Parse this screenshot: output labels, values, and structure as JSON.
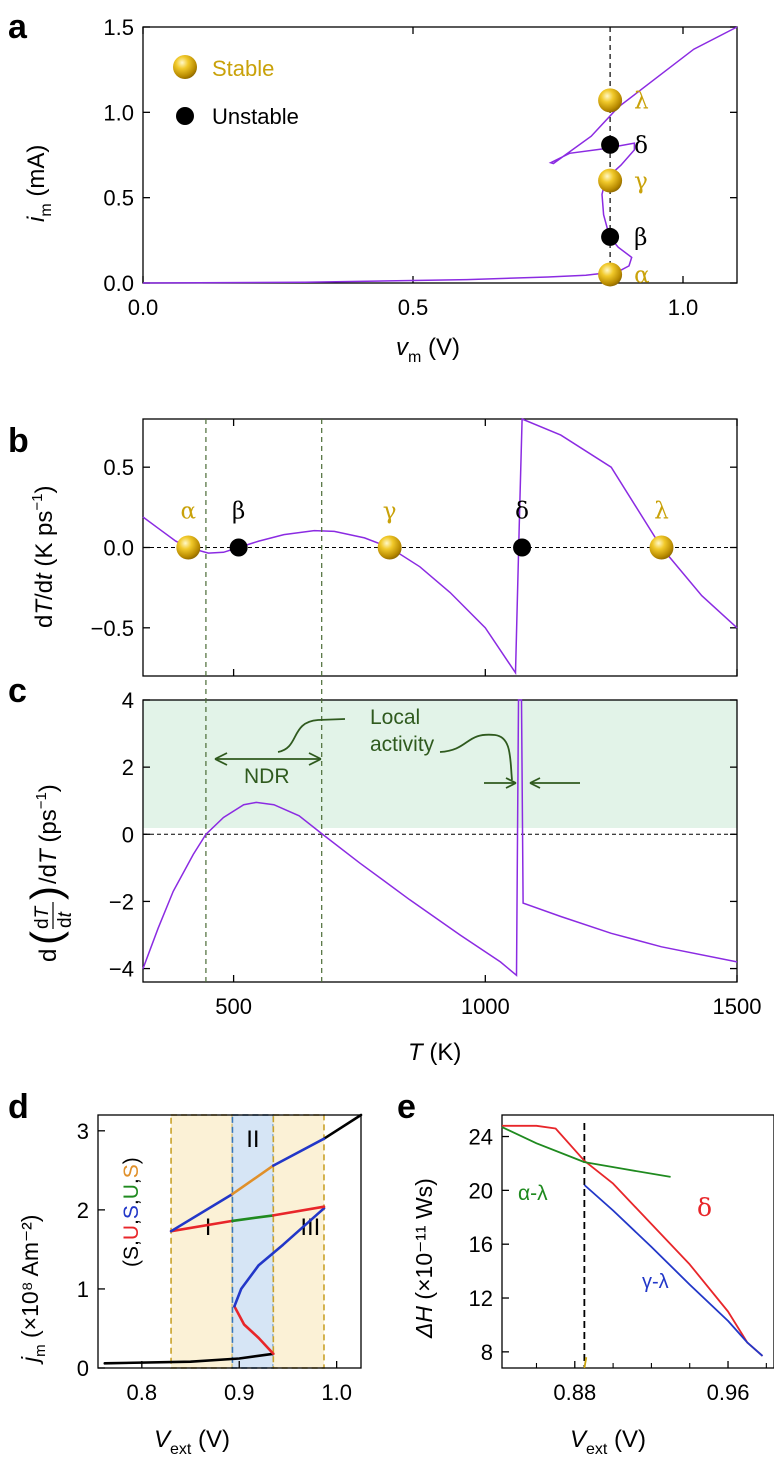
{
  "colors": {
    "purple": "#8b2be2",
    "gold": "#c9a20a",
    "axis": "#000000",
    "green_text": "#2f5a1e",
    "shade_green": "#e2f3e8",
    "shade_yellow": "#fbf1d6",
    "shade_blue": "#d6e5f5",
    "red": "#e8262a",
    "blue": "#2237c8",
    "green": "#1f8a1f",
    "orange": "#e0902a",
    "black": "#000000"
  },
  "chart_data": [
    {
      "panel": "a",
      "type": "line",
      "xlabel_var": "v",
      "xlabel_sub": "m",
      "xlabel_unit": " (V)",
      "ylabel_var": "i",
      "ylabel_sub": "m",
      "ylabel_unit": " (mA)",
      "xlim": [
        0,
        1.1
      ],
      "ylim": [
        0,
        1.5
      ],
      "xticks": [
        "0.0",
        "0.5",
        "1.0"
      ],
      "xtick_values": [
        0,
        0.5,
        1.0
      ],
      "yticks": [
        "0.0",
        "0.5",
        "1.0",
        "1.5"
      ],
      "ytick_values": [
        0,
        0.5,
        1.0,
        1.5
      ],
      "vline_x": 0.865,
      "curve": [
        [
          0,
          0
        ],
        [
          0.3,
          0.004
        ],
        [
          0.6,
          0.02
        ],
        [
          0.75,
          0.035
        ],
        [
          0.82,
          0.045
        ],
        [
          0.86,
          0.06
        ],
        [
          0.885,
          0.075
        ],
        [
          0.9,
          0.1
        ],
        [
          0.905,
          0.15
        ],
        [
          0.88,
          0.21
        ],
        [
          0.864,
          0.27
        ],
        [
          0.853,
          0.4
        ],
        [
          0.85,
          0.52
        ],
        [
          0.857,
          0.61
        ],
        [
          0.885,
          0.69
        ],
        [
          0.91,
          0.78
        ],
        [
          0.91,
          0.82
        ],
        [
          0.85,
          0.785
        ],
        [
          0.79,
          0.76
        ],
        [
          0.755,
          0.705
        ],
        [
          0.76,
          0.7
        ],
        [
          0.83,
          0.86
        ],
        [
          0.88,
          1.03
        ],
        [
          0.95,
          1.2
        ],
        [
          1.02,
          1.37
        ],
        [
          1.1,
          1.5
        ]
      ],
      "legend": [
        {
          "label": "Stable",
          "kind": "stable"
        },
        {
          "label": "Unstable",
          "kind": "unstable"
        }
      ],
      "points": [
        {
          "label": "λ",
          "x": 0.865,
          "y": 1.07,
          "kind": "stable"
        },
        {
          "label": "δ",
          "x": 0.865,
          "y": 0.81,
          "kind": "unstable"
        },
        {
          "label": "γ",
          "x": 0.865,
          "y": 0.6,
          "kind": "stable"
        },
        {
          "label": "β",
          "x": 0.865,
          "y": 0.27,
          "kind": "unstable"
        },
        {
          "label": "α",
          "x": 0.865,
          "y": 0.05,
          "kind": "stable"
        }
      ]
    },
    {
      "panel": "b",
      "type": "line",
      "ylabel": "dT/dt (K ps⁻¹)",
      "xlim": [
        320,
        1500
      ],
      "ylim": [
        -0.8,
        0.8
      ],
      "yticks": [
        "0.5",
        "0.0",
        "−0.5"
      ],
      "ytick_values": [
        0.5,
        0,
        -0.5
      ],
      "xtick_values": [
        500,
        1000,
        1500
      ],
      "curve": [
        [
          320,
          0.19
        ],
        [
          350,
          0.12
        ],
        [
          385,
          0.04
        ],
        [
          410,
          0.0
        ],
        [
          450,
          -0.035
        ],
        [
          480,
          -0.03
        ],
        [
          510,
          0.0
        ],
        [
          550,
          0.04
        ],
        [
          600,
          0.08
        ],
        [
          660,
          0.105
        ],
        [
          700,
          0.1
        ],
        [
          760,
          0.06
        ],
        [
          810,
          0.0
        ],
        [
          870,
          -0.12
        ],
        [
          930,
          -0.28
        ],
        [
          1000,
          -0.5
        ],
        [
          1060,
          -0.78
        ],
        [
          1068,
          0.2
        ],
        [
          1073,
          0.8
        ],
        [
          1150,
          0.7
        ],
        [
          1250,
          0.5
        ],
        [
          1350,
          0.0
        ],
        [
          1430,
          -0.3
        ],
        [
          1500,
          -0.5
        ]
      ],
      "points": [
        {
          "label": "α",
          "x": 410,
          "y": 0,
          "kind": "stable"
        },
        {
          "label": "β",
          "x": 510,
          "y": 0,
          "kind": "unstable"
        },
        {
          "label": "γ",
          "x": 810,
          "y": 0,
          "kind": "stable"
        },
        {
          "label": "δ",
          "x": 1073,
          "y": 0,
          "kind": "unstable"
        },
        {
          "label": "λ",
          "x": 1350,
          "y": 0,
          "kind": "stable"
        }
      ]
    },
    {
      "panel": "c",
      "type": "line",
      "ylabel": "d(dT/dt)/dT (ps⁻¹)",
      "ylabel_pre": "d",
      "ylabel_num": "dT",
      "ylabel_den": "dt",
      "ylabel_post": "/dT (ps⁻¹)",
      "xlabel_var": "T",
      "xlabel_unit": " (K)",
      "xlim": [
        320,
        1500
      ],
      "ylim": [
        -4.4,
        4
      ],
      "xticks": [
        "500",
        "1000",
        "1500"
      ],
      "xtick_values": [
        500,
        1000,
        1500
      ],
      "yticks": [
        "4",
        "2",
        "0",
        "−2",
        "−4"
      ],
      "ytick_values": [
        4,
        2,
        0,
        -2,
        -4
      ],
      "vlines": [
        445,
        675
      ],
      "annotations": {
        "ndr": "NDR",
        "local_activity_1": "Local",
        "local_activity_2": "activity"
      },
      "curve": [
        [
          320,
          -4
        ],
        [
          350,
          -2.8
        ],
        [
          380,
          -1.7
        ],
        [
          420,
          -0.6
        ],
        [
          445,
          0
        ],
        [
          480,
          0.5
        ],
        [
          520,
          0.88
        ],
        [
          545,
          0.95
        ],
        [
          580,
          0.88
        ],
        [
          630,
          0.55
        ],
        [
          675,
          0.02
        ],
        [
          750,
          -0.85
        ],
        [
          850,
          -1.95
        ],
        [
          950,
          -3.0
        ],
        [
          1030,
          -3.8
        ],
        [
          1062,
          -4.2
        ],
        [
          1066,
          4.0
        ],
        [
          1072,
          4.0
        ],
        [
          1075,
          -2.05
        ],
        [
          1150,
          -2.45
        ],
        [
          1250,
          -2.95
        ],
        [
          1350,
          -3.35
        ],
        [
          1500,
          -3.8
        ]
      ]
    },
    {
      "panel": "d",
      "type": "line",
      "xlabel_var": "V",
      "xlabel_sub": "ext",
      "xlabel_unit": " (V)",
      "ylabel_var": "j",
      "ylabel_sub": "m",
      "ylabel_unit": " (×10⁸ Am⁻²)",
      "xlim": [
        0.755,
        1.025
      ],
      "ylim": [
        0,
        3.2
      ],
      "xticks": [
        "0.8",
        "0.9",
        "1.0"
      ],
      "xtick_values": [
        0.8,
        0.9,
        1.0
      ],
      "yticks": [
        "0",
        "1",
        "2",
        "3"
      ],
      "ytick_values": [
        0,
        1,
        2,
        3
      ],
      "regions": [
        {
          "label": "I",
          "x0": 0.83,
          "x1": 0.893,
          "fill": "yellow"
        },
        {
          "label": "II",
          "x0": 0.893,
          "x1": 0.935,
          "fill": "blue"
        },
        {
          "label": "III",
          "x0": 0.935,
          "x1": 0.987,
          "fill": "yellow"
        }
      ],
      "state_label": [
        "(",
        "S",
        ",",
        "U",
        ",",
        "S",
        ",",
        "U",
        ",",
        "S",
        ")"
      ],
      "series": [
        {
          "name": "black-low",
          "color": "black",
          "points": [
            [
              0.762,
              0.06
            ],
            [
              0.85,
              0.08
            ],
            [
              0.9,
              0.12
            ],
            [
              0.935,
              0.18
            ]
          ]
        },
        {
          "name": "black-high",
          "color": "black",
          "points": [
            [
              0.987,
              2.9
            ],
            [
              1.025,
              3.2
            ]
          ]
        },
        {
          "name": "red-fold",
          "color": "red",
          "points": [
            [
              0.935,
              0.18
            ],
            [
              0.92,
              0.38
            ],
            [
              0.905,
              0.55
            ],
            [
              0.895,
              0.78
            ]
          ]
        },
        {
          "name": "blue-mid",
          "color": "blue",
          "points": [
            [
              0.895,
              0.78
            ],
            [
              0.902,
              1.0
            ],
            [
              0.92,
              1.3
            ],
            [
              0.945,
              1.56
            ],
            [
              0.987,
              2.02
            ]
          ]
        },
        {
          "name": "red-upper",
          "color": "red",
          "points": [
            [
              0.83,
              1.73
            ],
            [
              0.893,
              1.86
            ]
          ]
        },
        {
          "name": "green-upper",
          "color": "green",
          "points": [
            [
              0.893,
              1.86
            ],
            [
              0.935,
              1.93
            ]
          ]
        },
        {
          "name": "red-right",
          "color": "red",
          "points": [
            [
              0.935,
              1.93
            ],
            [
              0.987,
              2.04
            ]
          ]
        },
        {
          "name": "blue-top-left",
          "color": "blue",
          "points": [
            [
              0.83,
              1.73
            ],
            [
              0.893,
              2.2
            ]
          ]
        },
        {
          "name": "orange-top",
          "color": "orange",
          "points": [
            [
              0.893,
              2.2
            ],
            [
              0.935,
              2.56
            ]
          ]
        },
        {
          "name": "blue-top-right",
          "color": "blue",
          "points": [
            [
              0.935,
              2.56
            ],
            [
              0.987,
              2.9
            ]
          ]
        }
      ]
    },
    {
      "panel": "e",
      "type": "line",
      "xlabel_var": "V",
      "xlabel_sub": "ext",
      "xlabel_unit": " (V)",
      "ylabel_var": "ΔH",
      "ylabel_unit": " (×10⁻¹¹ Ws)",
      "xlim": [
        0.842,
        0.984
      ],
      "ylim": [
        6.8,
        25.6
      ],
      "xticks": [
        "0.88",
        "0.96"
      ],
      "xtick_values": [
        0.88,
        0.96
      ],
      "yticks": [
        "24",
        "20",
        "16",
        "12",
        "8"
      ],
      "ytick_values": [
        24,
        20,
        16,
        12,
        8
      ],
      "vline_x": 0.885,
      "series": [
        {
          "name": "δ",
          "color": "red",
          "points": [
            [
              0.842,
              24.8
            ],
            [
              0.86,
              24.8
            ],
            [
              0.87,
              24.6
            ],
            [
              0.885,
              22.2
            ],
            [
              0.9,
              20.5
            ],
            [
              0.92,
              17.5
            ],
            [
              0.94,
              14.5
            ],
            [
              0.96,
              11.0
            ],
            [
              0.97,
              8.7
            ],
            [
              0.978,
              7.7
            ]
          ]
        },
        {
          "name": "α-λ",
          "color": "green",
          "points": [
            [
              0.842,
              24.7
            ],
            [
              0.86,
              23.5
            ],
            [
              0.885,
              22.1
            ],
            [
              0.905,
              21.6
            ],
            [
              0.93,
              21.0
            ]
          ]
        },
        {
          "name": "γ-λ",
          "color": "blue",
          "points": [
            [
              0.885,
              20.4
            ],
            [
              0.9,
              18.5
            ],
            [
              0.92,
              15.8
            ],
            [
              0.94,
              13.0
            ],
            [
              0.96,
              10.3
            ],
            [
              0.97,
              8.7
            ],
            [
              0.978,
              7.7
            ]
          ]
        },
        {
          "name": "olive-tick",
          "color": "gold",
          "points": [
            [
              0.885,
              6.8
            ],
            [
              0.886,
              7.6
            ]
          ]
        }
      ],
      "labels": {
        "delta": "δ",
        "alpha_lambda": "α-λ",
        "gamma_lambda": "γ-λ"
      }
    }
  ]
}
